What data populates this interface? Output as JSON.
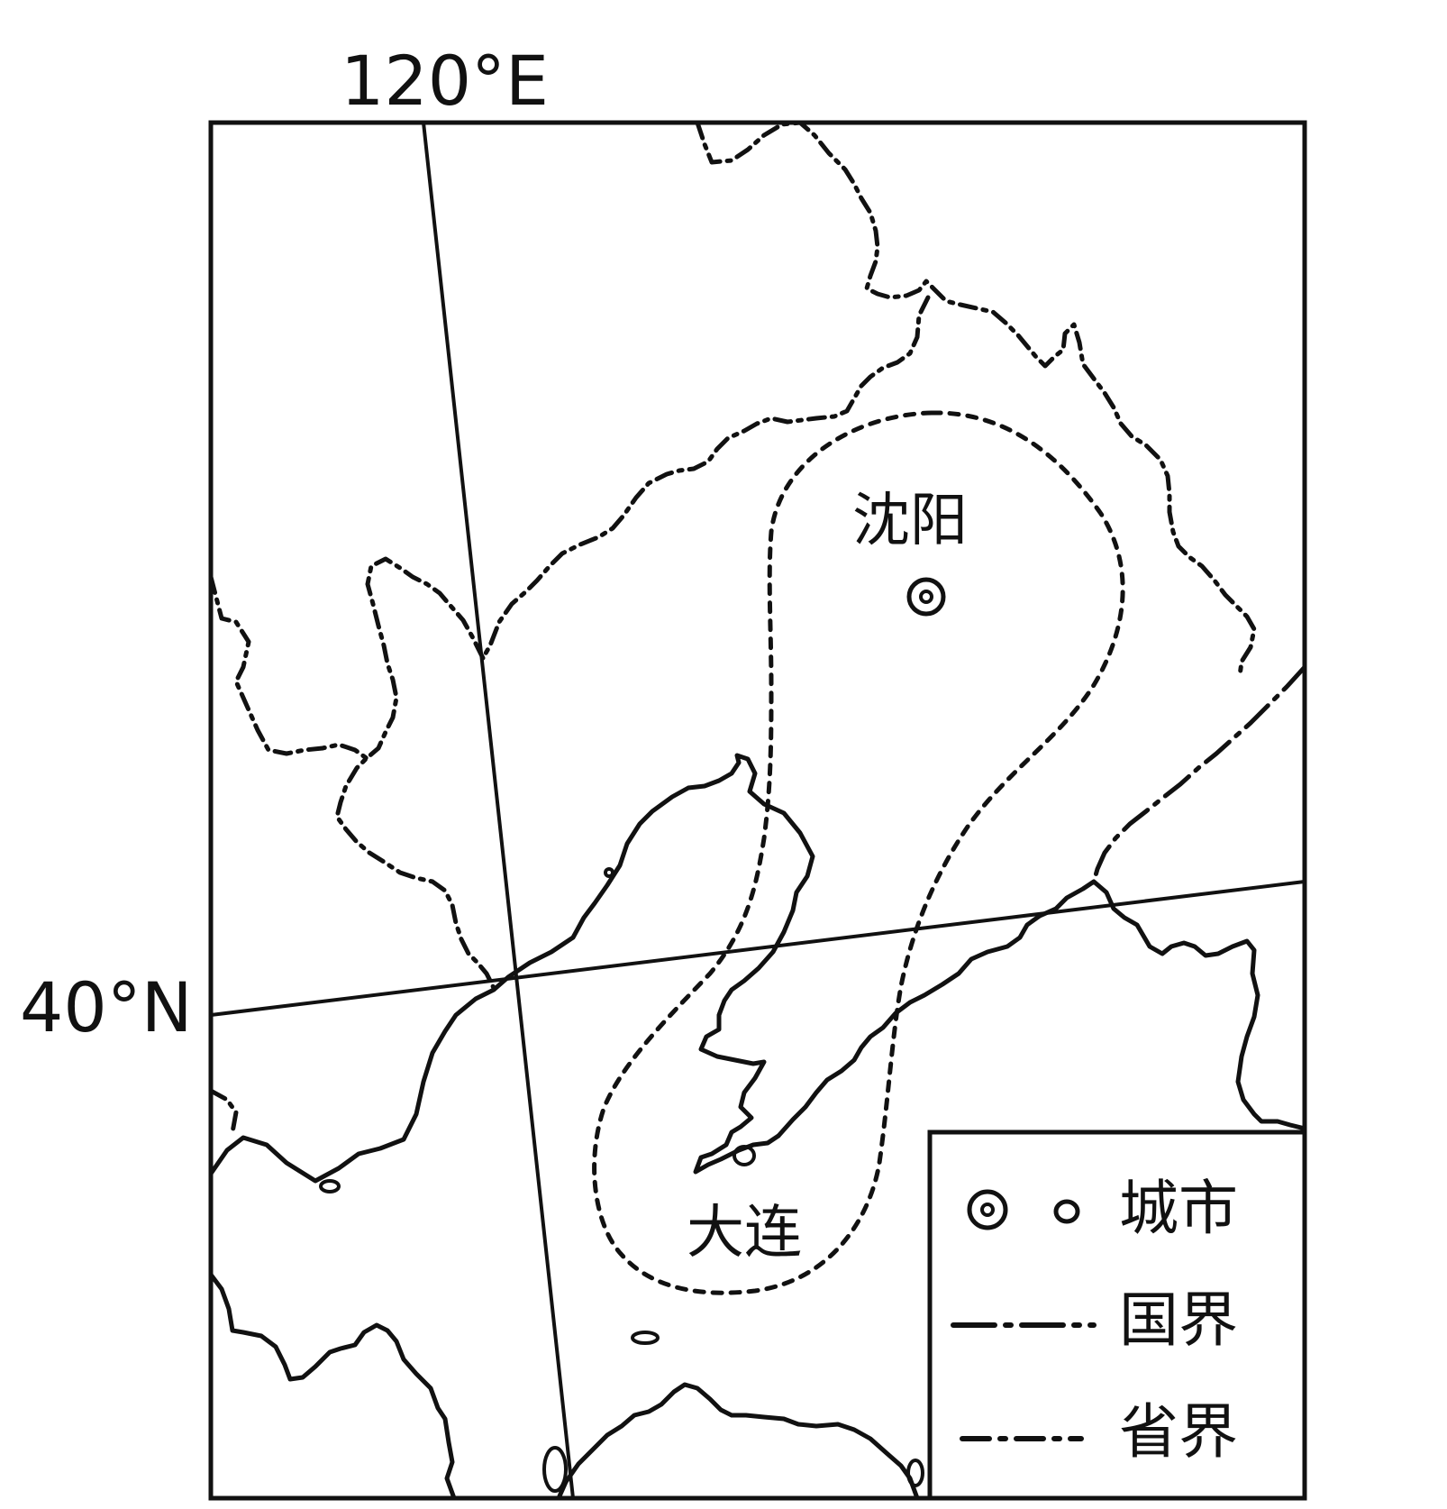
{
  "map": {
    "longitude_label": "120°E",
    "latitude_label": "40°N"
  },
  "cities": {
    "shenyang": "沈阳",
    "dalian": "大连"
  },
  "legend": {
    "city": "城市",
    "national_border": "国界",
    "provincial_border": "省界"
  },
  "colors": {
    "ink": "#111111",
    "background": "#ffffff"
  }
}
